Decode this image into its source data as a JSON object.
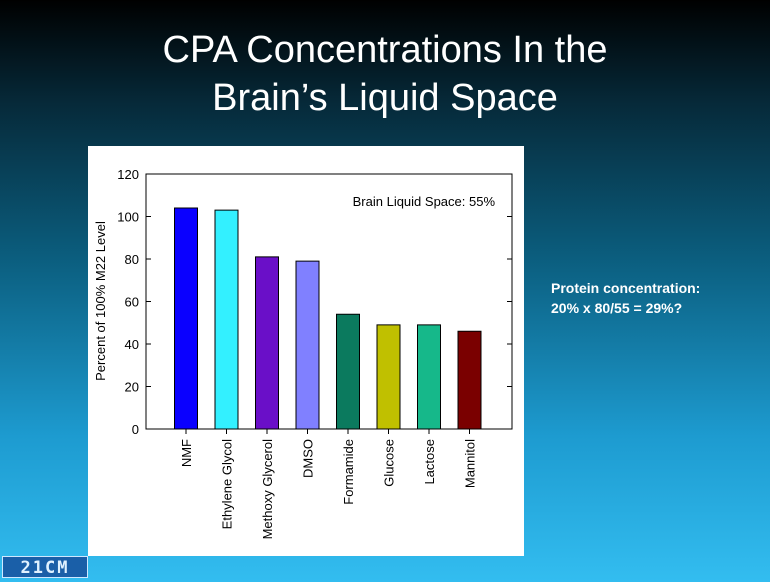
{
  "slide": {
    "title_line1": "CPA Concentrations In the",
    "title_line2": "Brain’s Liquid Space",
    "annotation_line1": "Protein concentration:",
    "annotation_line2": "20% x 80/55 = 29%?",
    "logo_text": "21CM"
  },
  "chart_data": {
    "type": "bar",
    "categories": [
      "NMF",
      "Ethylene Glycol",
      "Methoxy Glycerol",
      "DMSO",
      "Formamide",
      "Glucose",
      "Lactose",
      "Mannitol"
    ],
    "values": [
      104,
      103,
      81,
      79,
      54,
      49,
      49,
      46
    ],
    "colors": [
      "#0a00ff",
      "#33f0ff",
      "#6a0fc8",
      "#8080ff",
      "#0b7a5e",
      "#c0c000",
      "#16b88a",
      "#7a0000"
    ],
    "title": "",
    "xlabel": "",
    "ylabel": "Percent of 100% M22 Level",
    "ylim": [
      0,
      120
    ],
    "yticks": [
      0,
      20,
      40,
      60,
      80,
      100,
      120
    ],
    "annotation": "Brain Liquid Space:  55%",
    "grid": false
  }
}
